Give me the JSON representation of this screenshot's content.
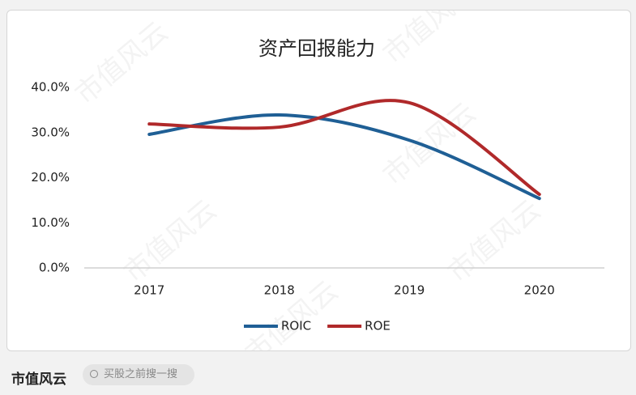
{
  "chart_data": {
    "type": "line",
    "title": "资产回报能力",
    "categories": [
      "2017",
      "2018",
      "2019",
      "2020"
    ],
    "series": [
      {
        "name": "ROIC",
        "color": "#1f5f95",
        "values": [
          29.6,
          33.9,
          28.3,
          15.4
        ]
      },
      {
        "name": "ROE",
        "color": "#b0292a",
        "values": [
          31.9,
          31.2,
          36.6,
          16.3
        ]
      }
    ],
    "ylim": [
      0,
      40
    ],
    "yticks": [
      {
        "value": 0,
        "label": "0.0%"
      },
      {
        "value": 10,
        "label": "10.0%"
      },
      {
        "value": 20,
        "label": "20.0%"
      },
      {
        "value": 30,
        "label": "30.0%"
      },
      {
        "value": 40,
        "label": "40.0%"
      }
    ],
    "grid": false,
    "legend": "bottom"
  },
  "watermark": "市值风云",
  "footer": {
    "brand": "市值风云",
    "search": "买股之前搜一搜"
  }
}
